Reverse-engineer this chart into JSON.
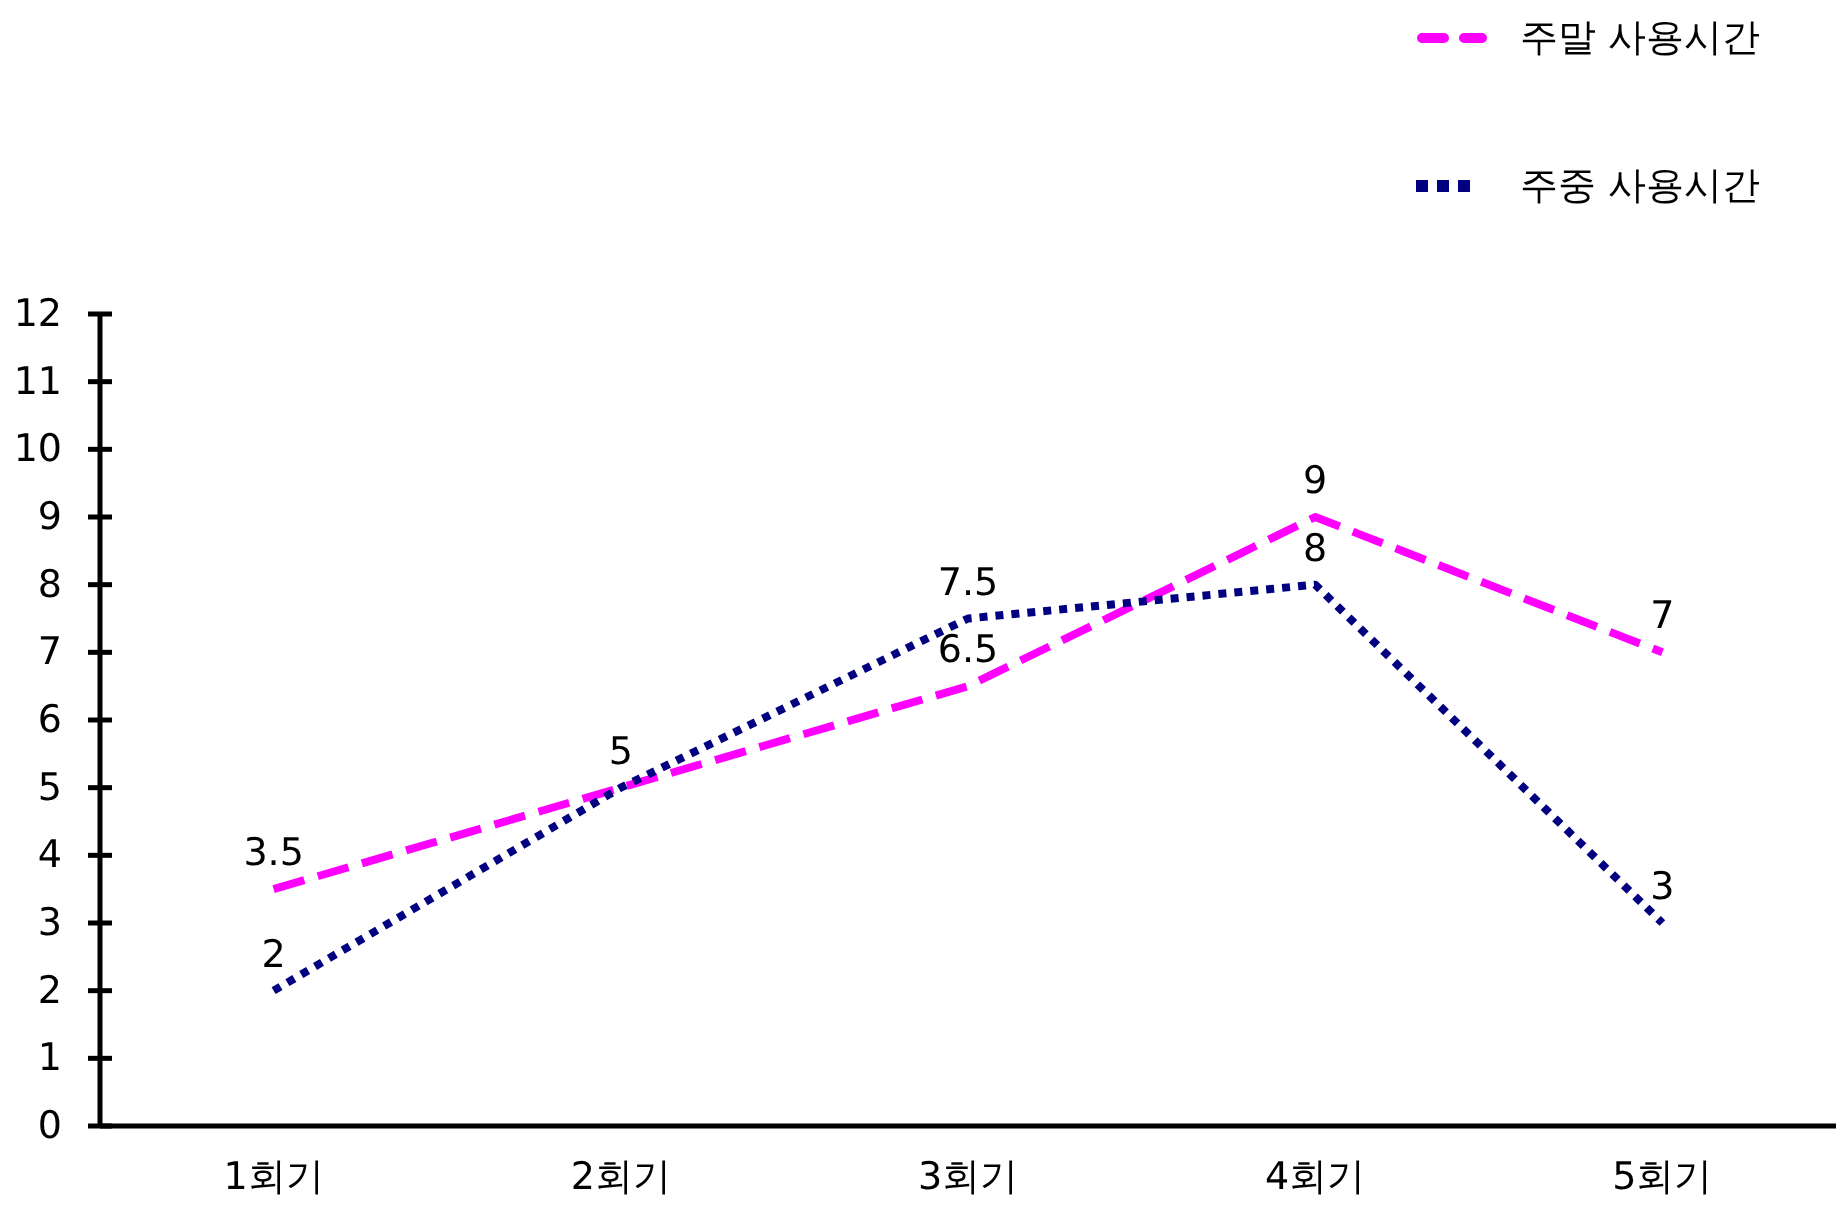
{
  "chart_data": {
    "type": "line",
    "categories": [
      "1회기",
      "2회기",
      "3회기",
      "4회기",
      "5회기"
    ],
    "series": [
      {
        "name": "주말 사용시간",
        "color": "#ff00ff",
        "line_style": "dashed",
        "values": [
          3.5,
          5,
          6.5,
          9,
          7
        ],
        "value_labels": [
          "3.5",
          "5",
          "6.5",
          "9",
          "7"
        ]
      },
      {
        "name": "주중 사용시간",
        "color": "#000080",
        "line_style": "dotted",
        "values": [
          2,
          5,
          7.5,
          8,
          3
        ],
        "value_labels": [
          "2",
          null,
          "7.5",
          "8",
          "3"
        ]
      }
    ],
    "ylim": [
      0,
      12
    ],
    "yticks": [
      0,
      1,
      2,
      3,
      4,
      5,
      6,
      7,
      8,
      9,
      10,
      11,
      12
    ],
    "legend": "top right"
  }
}
